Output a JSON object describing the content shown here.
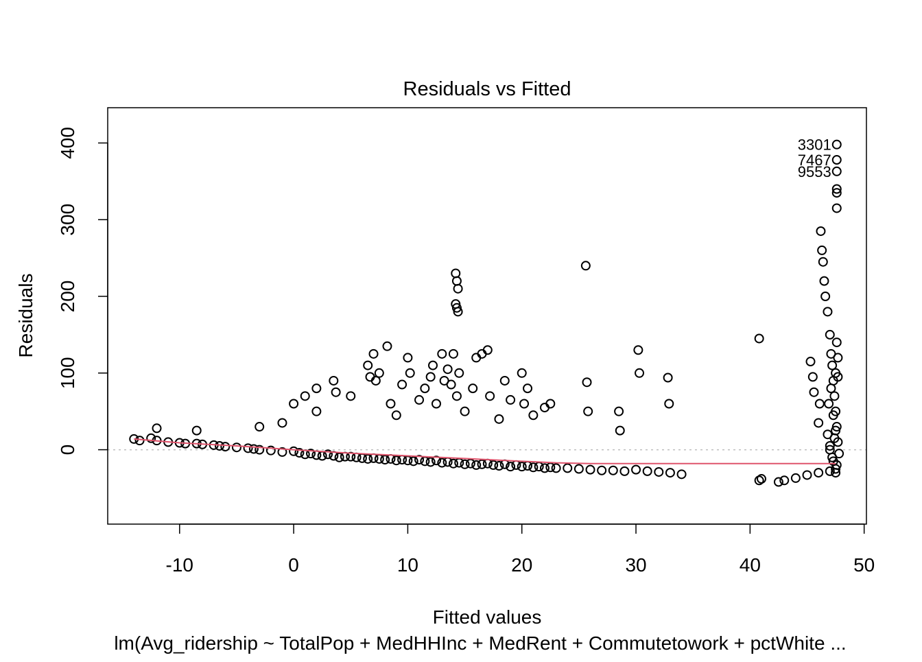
{
  "chart_data": {
    "type": "scatter",
    "title": "Residuals vs Fitted",
    "xlabel": "Fitted values",
    "ylabel": "Residuals",
    "caption": "lm(Avg_ridership ~ TotalPop + MedHHInc + MedRent + Commutetowork + pctWhite ...",
    "xlim": [
      -16.3,
      50.2
    ],
    "ylim": [
      -97,
      446
    ],
    "xticks": [
      -10,
      0,
      10,
      20,
      30,
      40,
      50
    ],
    "yticks": [
      0,
      100,
      200,
      300,
      400
    ],
    "grid": false,
    "reference_line": {
      "y": 0,
      "style": "dotted",
      "color": "#bebebe"
    },
    "smooth_line": {
      "color": "#df536b",
      "x": [
        -14,
        -10,
        -5,
        0,
        5,
        10,
        15,
        20,
        23,
        26,
        30,
        35,
        40,
        45,
        47.5
      ],
      "y": [
        14,
        9,
        5,
        0,
        -4.5,
        -8,
        -11.5,
        -15,
        -17,
        -18,
        -18,
        -18,
        -18,
        -18,
        -18
      ]
    },
    "labeled_points": [
      {
        "label": "3301",
        "x": 47.6,
        "y": 398
      },
      {
        "label": "7467",
        "x": 47.6,
        "y": 378
      },
      {
        "label": "9553",
        "x": 47.6,
        "y": 363
      }
    ],
    "series": [
      {
        "marker": "open-circle",
        "color": "#000000",
        "x": [
          -14,
          -13.5,
          -12.5,
          -12,
          -11,
          -10,
          -9.5,
          -8.5,
          -8,
          -7,
          -6.5,
          -6,
          -5,
          -4,
          -3.5,
          -3,
          -2,
          -1,
          0,
          0.5,
          1,
          1.5,
          2,
          2.5,
          3,
          3.5,
          4,
          4.5,
          5,
          5.5,
          6,
          6.5,
          7,
          7.5,
          8,
          8.5,
          9,
          9.5,
          10,
          10.5,
          11,
          11.5,
          12,
          12.5,
          13,
          13.5,
          14,
          14.5,
          15,
          15.5,
          16,
          16.5,
          17,
          17.5,
          18,
          18.5,
          19,
          19.5,
          20,
          20.5,
          21,
          21.5,
          22,
          22.5,
          23,
          24,
          25,
          26,
          27,
          28,
          29,
          30,
          31,
          32,
          33,
          34,
          40.8,
          41,
          42.5,
          43,
          44,
          45,
          46,
          47,
          47.5,
          -12,
          -8.5,
          -3,
          -1,
          0,
          1,
          2,
          2,
          3.5,
          3.7,
          5,
          6.5,
          6.7,
          7,
          7.2,
          7.5,
          8.2,
          8.5,
          9,
          9.5,
          10,
          10.2,
          11,
          11.5,
          12,
          12.2,
          12.5,
          13,
          13.2,
          13.5,
          13.8,
          14,
          14.3,
          14.5,
          15,
          15.7,
          16,
          16.5,
          17,
          17.2,
          18,
          18.5,
          19,
          20,
          20.2,
          20.5,
          21,
          22,
          22.5,
          25.6,
          25.7,
          25.8,
          28.5,
          28.6,
          30.2,
          30.3,
          32.8,
          32.9,
          14.2,
          14.3,
          14.4,
          14.2,
          14.3,
          14.4,
          40.8,
          45.3,
          45.5,
          45.6,
          46,
          46.1,
          46.2,
          46.3,
          46.4,
          46.5,
          46.6,
          46.8,
          47,
          47.1,
          47.2,
          47.3,
          47.4,
          47.5,
          47.6,
          47.7,
          47.8,
          47.6,
          47.6,
          47.6,
          47.5,
          47.6,
          47.7,
          47.7,
          47,
          47.2,
          47.4,
          47.6,
          46.8,
          47,
          47.3,
          47.5,
          46.9,
          47.1,
          47.3,
          47.5
        ],
        "y": [
          14,
          12,
          15,
          12,
          10,
          9,
          8,
          8,
          7,
          6,
          5,
          4,
          3,
          2,
          1,
          0,
          -1,
          -3,
          -2,
          -4,
          -6,
          -5,
          -7,
          -8,
          -6,
          -8,
          -10,
          -9,
          -9,
          -10,
          -11,
          -12,
          -11,
          -12,
          -13,
          -12,
          -14,
          -13,
          -14,
          -15,
          -13,
          -15,
          -16,
          -14,
          -17,
          -16,
          -18,
          -17,
          -19,
          -18,
          -20,
          -19,
          -18,
          -20,
          -21,
          -19,
          -22,
          -20,
          -22,
          -21,
          -23,
          -22,
          -24,
          -23,
          -24,
          -24,
          -25,
          -26,
          -27,
          -27,
          -28,
          -26,
          -28,
          -29,
          -30,
          -32,
          -40,
          -38,
          -42,
          -40,
          -37,
          -33,
          -30,
          -28,
          -25,
          28,
          25,
          30,
          35,
          60,
          70,
          50,
          80,
          90,
          75,
          70,
          110,
          95,
          125,
          90,
          100,
          135,
          60,
          45,
          85,
          120,
          100,
          65,
          80,
          95,
          110,
          60,
          125,
          90,
          105,
          85,
          125,
          70,
          100,
          50,
          80,
          120,
          125,
          130,
          70,
          40,
          90,
          65,
          100,
          60,
          80,
          45,
          55,
          60,
          240,
          88,
          50,
          50,
          25,
          130,
          100,
          94,
          60,
          230,
          220,
          210,
          190,
          185,
          180,
          145,
          115,
          95,
          75,
          35,
          60,
          285,
          260,
          245,
          220,
          200,
          180,
          150,
          125,
          110,
          90,
          70,
          50,
          30,
          10,
          -5,
          315,
          340,
          335,
          100,
          140,
          120,
          95,
          5,
          -10,
          15,
          -20,
          20,
          0,
          -15,
          25,
          60,
          80,
          45,
          -30
        ]
      }
    ]
  }
}
